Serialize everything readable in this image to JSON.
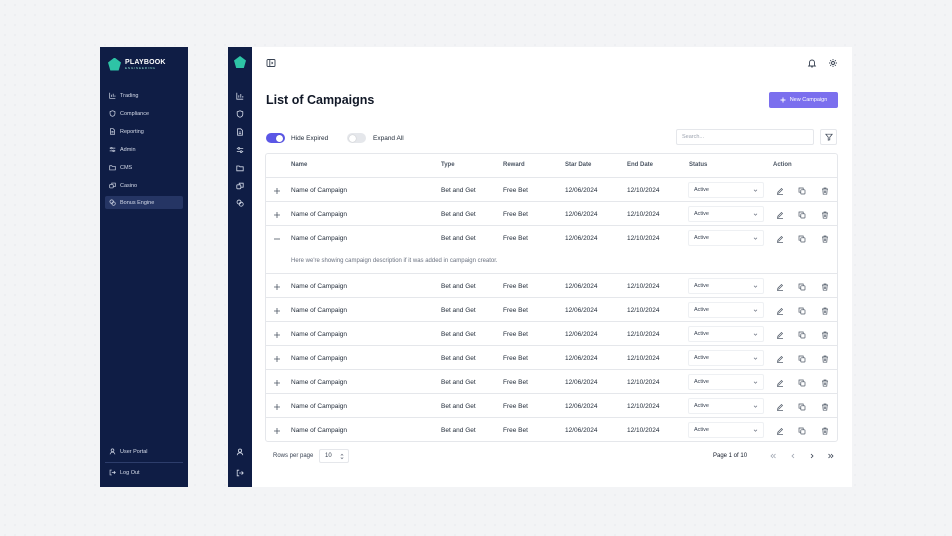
{
  "brand": {
    "name": "PLAYBOOK",
    "tagline": "ENGINEERING"
  },
  "sidebar": {
    "items": [
      {
        "label": "Trading",
        "icon": "bar-chart-icon"
      },
      {
        "label": "Compliance",
        "icon": "shield-icon"
      },
      {
        "label": "Reporting",
        "icon": "document-icon"
      },
      {
        "label": "Admin",
        "icon": "sliders-icon"
      },
      {
        "label": "CMS",
        "icon": "folder-icon"
      },
      {
        "label": "Casino",
        "icon": "dice-icon"
      },
      {
        "label": "Bonus Engine",
        "icon": "coins-icon",
        "active": true
      }
    ],
    "bottom": [
      {
        "label": "User Portal",
        "icon": "user-icon"
      },
      {
        "label": "Log Out",
        "icon": "logout-icon"
      }
    ]
  },
  "header": {
    "title": "List of Campaigns",
    "new_button": "New Campaign"
  },
  "filters": {
    "hide_expired": {
      "label": "Hide Expired",
      "on": true
    },
    "expand_all": {
      "label": "Expand All",
      "on": false
    },
    "search_placeholder": "Search..."
  },
  "table": {
    "columns": [
      "Name",
      "Type",
      "Reward",
      "Star Date",
      "End Date",
      "Status",
      "Action"
    ],
    "rows": [
      {
        "name": "Name of Campaign",
        "type": "Bet and Get",
        "reward": "Free Bet",
        "start": "12/06/2024",
        "end": "12/10/2024",
        "status": "Active",
        "expanded": false
      },
      {
        "name": "Name of Campaign",
        "type": "Bet and Get",
        "reward": "Free Bet",
        "start": "12/06/2024",
        "end": "12/10/2024",
        "status": "Active",
        "expanded": false
      },
      {
        "name": "Name of Campaign",
        "type": "Bet and Get",
        "reward": "Free Bet",
        "start": "12/06/2024",
        "end": "12/10/2024",
        "status": "Active",
        "expanded": true,
        "description": "Here we're showing campaign description if it was added in campaign creator."
      },
      {
        "name": "Name of Campaign",
        "type": "Bet and Get",
        "reward": "Free Bet",
        "start": "12/06/2024",
        "end": "12/10/2024",
        "status": "Active",
        "expanded": false
      },
      {
        "name": "Name of Campaign",
        "type": "Bet and Get",
        "reward": "Free Bet",
        "start": "12/06/2024",
        "end": "12/10/2024",
        "status": "Active",
        "expanded": false
      },
      {
        "name": "Name of Campaign",
        "type": "Bet and Get",
        "reward": "Free Bet",
        "start": "12/06/2024",
        "end": "12/10/2024",
        "status": "Active",
        "expanded": false
      },
      {
        "name": "Name of Campaign",
        "type": "Bet and Get",
        "reward": "Free Bet",
        "start": "12/06/2024",
        "end": "12/10/2024",
        "status": "Active",
        "expanded": false
      },
      {
        "name": "Name of Campaign",
        "type": "Bet and Get",
        "reward": "Free Bet",
        "start": "12/06/2024",
        "end": "12/10/2024",
        "status": "Active",
        "expanded": false
      },
      {
        "name": "Name of Campaign",
        "type": "Bet and Get",
        "reward": "Free Bet",
        "start": "12/06/2024",
        "end": "12/10/2024",
        "status": "Active",
        "expanded": false
      },
      {
        "name": "Name of Campaign",
        "type": "Bet and Get",
        "reward": "Free Bet",
        "start": "12/06/2024",
        "end": "12/10/2024",
        "status": "Active",
        "expanded": false
      }
    ]
  },
  "pagination": {
    "rows_per_page_label": "Rows per page",
    "rows_per_page": "10",
    "page_info": "Page 1 of 10"
  },
  "colors": {
    "sidebar": "#0f1d45",
    "accent": "#7b6fee",
    "toggle_on": "#5b57e6",
    "logo": "#2ec4a6"
  }
}
